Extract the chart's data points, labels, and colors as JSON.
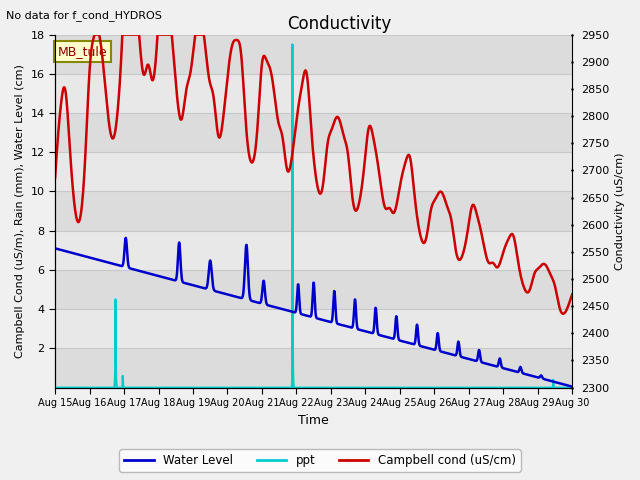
{
  "title": "Conductivity",
  "top_left_text": "No data for f_cond_HYDROS",
  "xlabel": "Time",
  "ylabel_left": "Campbell Cond (uS/m), Rain (mm), Water Level (cm)",
  "ylabel_right": "Conductivity (uS/cm)",
  "ylim_left": [
    0,
    18
  ],
  "ylim_right": [
    2300,
    2950
  ],
  "xlim": [
    0,
    15
  ],
  "x_tick_labels": [
    "Aug 15",
    "Aug 16",
    "Aug 17",
    "Aug 18",
    "Aug 19",
    "Aug 20",
    "Aug 21",
    "Aug 22",
    "Aug 23",
    "Aug 24",
    "Aug 25",
    "Aug 26",
    "Aug 27",
    "Aug 28",
    "Aug 29",
    "Aug 30"
  ],
  "x_tick_positions": [
    0,
    1,
    2,
    3,
    4,
    5,
    6,
    7,
    8,
    9,
    10,
    11,
    12,
    13,
    14,
    15
  ],
  "site_label": "MB_tule",
  "fig_bg": "#f0f0f0",
  "plot_bg": "#e8e8e8",
  "water_level_color": "#0000cc",
  "ppt_color": "#00cccc",
  "campbell_cond_color": "#cc0000",
  "water_level_lw": 1.8,
  "ppt_lw": 1.5,
  "campbell_cond_lw": 1.8,
  "band_colors": [
    "#dcdcdc",
    "#e8e8e8"
  ],
  "grid_line_color": "#c8c8c8"
}
